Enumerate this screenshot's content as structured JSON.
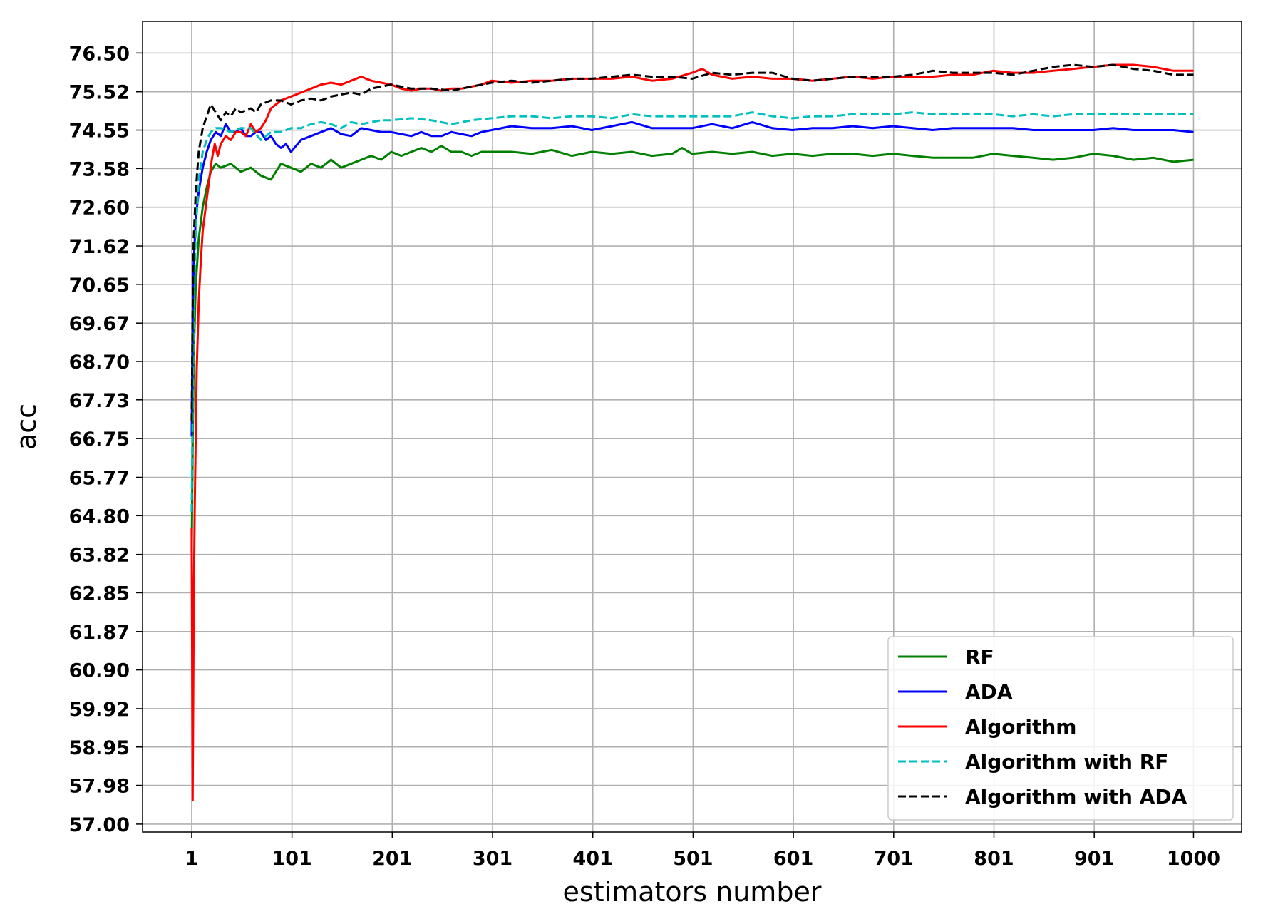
{
  "chart_data": {
    "type": "line",
    "xlabel": "estimators number",
    "ylabel": "acc",
    "xlim": [
      -48,
      1048
    ],
    "ylim": [
      56.8,
      77.3
    ],
    "xticks": [
      1,
      101,
      201,
      301,
      401,
      501,
      601,
      701,
      801,
      901,
      1000
    ],
    "yticks": [
      57.0,
      57.98,
      58.95,
      59.92,
      60.9,
      61.87,
      62.85,
      63.82,
      64.8,
      65.77,
      66.75,
      67.73,
      68.7,
      69.67,
      70.65,
      71.62,
      72.6,
      73.58,
      74.55,
      75.52,
      76.5
    ],
    "ytick_labels": [
      "57.00",
      "57.98",
      "58.95",
      "59.92",
      "60.90",
      "61.87",
      "62.85",
      "63.82",
      "64.80",
      "65.77",
      "66.75",
      "67.73",
      "68.70",
      "69.67",
      "70.65",
      "71.62",
      "72.60",
      "73.58",
      "74.55",
      "75.52",
      "76.50"
    ],
    "grid": true,
    "legend_position": "lower-right",
    "series": [
      {
        "name": "RF",
        "color": "#008000",
        "dash": "solid",
        "x": [
          1,
          2,
          3,
          5,
          8,
          12,
          16,
          20,
          25,
          30,
          40,
          50,
          60,
          70,
          80,
          90,
          100,
          110,
          120,
          130,
          140,
          150,
          160,
          170,
          180,
          190,
          200,
          210,
          220,
          230,
          240,
          250,
          260,
          270,
          280,
          290,
          300,
          320,
          340,
          360,
          380,
          400,
          420,
          440,
          460,
          480,
          490,
          500,
          520,
          540,
          560,
          580,
          600,
          620,
          640,
          660,
          680,
          700,
          720,
          740,
          760,
          780,
          800,
          820,
          840,
          860,
          880,
          900,
          920,
          940,
          960,
          980,
          1000
        ],
        "y": [
          63.9,
          66.5,
          68.8,
          70.6,
          71.8,
          72.6,
          73.1,
          73.5,
          73.7,
          73.6,
          73.7,
          73.5,
          73.6,
          73.4,
          73.3,
          73.7,
          73.6,
          73.5,
          73.7,
          73.6,
          73.8,
          73.6,
          73.7,
          73.8,
          73.9,
          73.8,
          74.0,
          73.9,
          74.0,
          74.1,
          74.0,
          74.15,
          74.0,
          74.0,
          73.9,
          74.0,
          74.0,
          74.0,
          73.95,
          74.05,
          73.9,
          74.0,
          73.95,
          74.0,
          73.9,
          73.95,
          74.1,
          73.95,
          74.0,
          73.95,
          74.0,
          73.9,
          73.95,
          73.9,
          73.95,
          73.95,
          73.9,
          73.95,
          73.9,
          73.85,
          73.85,
          73.85,
          73.95,
          73.9,
          73.85,
          73.8,
          73.85,
          73.95,
          73.9,
          73.8,
          73.85,
          73.75,
          73.8
        ]
      },
      {
        "name": "ADA",
        "color": "#0000ff",
        "dash": "solid",
        "x": [
          1,
          2,
          3,
          5,
          8,
          12,
          16,
          20,
          25,
          30,
          35,
          40,
          45,
          50,
          55,
          60,
          65,
          70,
          75,
          80,
          85,
          90,
          95,
          100,
          110,
          120,
          130,
          140,
          150,
          160,
          170,
          180,
          190,
          200,
          210,
          220,
          230,
          240,
          250,
          260,
          270,
          280,
          290,
          300,
          320,
          340,
          360,
          380,
          400,
          420,
          440,
          460,
          480,
          500,
          520,
          540,
          560,
          580,
          600,
          620,
          640,
          660,
          680,
          700,
          720,
          740,
          760,
          780,
          800,
          820,
          840,
          860,
          880,
          900,
          920,
          940,
          960,
          980,
          1000
        ],
        "y": [
          66.8,
          69.8,
          71.2,
          72.3,
          73.0,
          73.6,
          74.0,
          74.3,
          74.5,
          74.4,
          74.7,
          74.5,
          74.5,
          74.6,
          74.4,
          74.4,
          74.5,
          74.5,
          74.3,
          74.4,
          74.2,
          74.1,
          74.2,
          74.0,
          74.3,
          74.4,
          74.5,
          74.6,
          74.45,
          74.4,
          74.6,
          74.55,
          74.5,
          74.5,
          74.45,
          74.4,
          74.5,
          74.4,
          74.4,
          74.5,
          74.45,
          74.4,
          74.5,
          74.55,
          74.65,
          74.6,
          74.6,
          74.65,
          74.55,
          74.65,
          74.75,
          74.6,
          74.6,
          74.6,
          74.7,
          74.6,
          74.75,
          74.6,
          74.55,
          74.6,
          74.6,
          74.65,
          74.6,
          74.65,
          74.6,
          74.55,
          74.6,
          74.6,
          74.6,
          74.6,
          74.55,
          74.55,
          74.55,
          74.55,
          74.6,
          74.55,
          74.55,
          74.55,
          74.5
        ]
      },
      {
        "name": "Algorithm",
        "color": "#ff0000",
        "dash": "solid",
        "x": [
          1,
          2,
          3,
          4,
          6,
          8,
          10,
          12,
          15,
          18,
          21,
          24,
          27,
          30,
          35,
          40,
          45,
          50,
          55,
          60,
          65,
          70,
          75,
          80,
          90,
          100,
          110,
          120,
          130,
          140,
          150,
          160,
          170,
          180,
          190,
          200,
          210,
          220,
          230,
          240,
          250,
          260,
          270,
          280,
          290,
          300,
          320,
          340,
          360,
          380,
          400,
          420,
          440,
          460,
          480,
          500,
          510,
          520,
          540,
          560,
          580,
          600,
          620,
          640,
          660,
          680,
          700,
          720,
          740,
          760,
          780,
          800,
          820,
          840,
          860,
          880,
          900,
          920,
          940,
          960,
          980,
          1000
        ],
        "y": [
          64.5,
          57.6,
          62.5,
          65.0,
          68.5,
          70.2,
          71.2,
          72.0,
          72.6,
          73.2,
          73.8,
          74.2,
          73.9,
          74.2,
          74.4,
          74.3,
          74.5,
          74.5,
          74.4,
          74.7,
          74.5,
          74.6,
          74.8,
          75.1,
          75.3,
          75.4,
          75.5,
          75.6,
          75.7,
          75.75,
          75.7,
          75.8,
          75.9,
          75.8,
          75.75,
          75.7,
          75.6,
          75.55,
          75.6,
          75.6,
          75.55,
          75.6,
          75.6,
          75.65,
          75.7,
          75.8,
          75.75,
          75.8,
          75.8,
          75.85,
          75.85,
          75.85,
          75.9,
          75.8,
          75.85,
          76.0,
          76.1,
          75.95,
          75.85,
          75.9,
          75.85,
          75.85,
          75.8,
          75.85,
          75.9,
          75.85,
          75.9,
          75.9,
          75.9,
          75.95,
          75.95,
          76.05,
          76.0,
          76.0,
          76.05,
          76.1,
          76.15,
          76.2,
          76.2,
          76.15,
          76.05,
          76.05
        ]
      },
      {
        "name": "Algorithm with RF",
        "color": "#00bfbf",
        "dash": "dashed",
        "x": [
          1,
          2,
          3,
          5,
          8,
          12,
          16,
          20,
          25,
          30,
          40,
          50,
          60,
          70,
          80,
          90,
          100,
          110,
          120,
          130,
          140,
          150,
          160,
          170,
          180,
          190,
          200,
          220,
          240,
          260,
          280,
          300,
          320,
          340,
          360,
          380,
          400,
          420,
          440,
          460,
          480,
          500,
          520,
          540,
          560,
          580,
          600,
          620,
          640,
          660,
          680,
          700,
          720,
          740,
          760,
          780,
          800,
          820,
          840,
          860,
          880,
          900,
          920,
          940,
          960,
          980,
          1000
        ],
        "y": [
          64.9,
          67.5,
          70.0,
          72.0,
          73.3,
          74.0,
          74.3,
          74.5,
          74.6,
          74.6,
          74.5,
          74.6,
          74.6,
          74.3,
          74.5,
          74.5,
          74.6,
          74.6,
          74.7,
          74.75,
          74.7,
          74.6,
          74.75,
          74.7,
          74.75,
          74.8,
          74.8,
          74.85,
          74.8,
          74.7,
          74.8,
          74.85,
          74.9,
          74.9,
          74.85,
          74.9,
          74.9,
          74.85,
          74.95,
          74.9,
          74.9,
          74.9,
          74.9,
          74.9,
          75.0,
          74.9,
          74.85,
          74.9,
          74.9,
          74.95,
          74.95,
          74.95,
          75.0,
          74.95,
          74.95,
          74.95,
          74.95,
          74.9,
          74.95,
          74.9,
          74.95,
          74.95,
          74.95,
          74.95,
          74.95,
          74.95,
          74.95
        ]
      },
      {
        "name": "Algorithm with ADA",
        "color": "#000000",
        "dash": "dashed",
        "x": [
          1,
          2,
          3,
          5,
          8,
          12,
          16,
          20,
          25,
          30,
          35,
          40,
          45,
          50,
          55,
          60,
          65,
          70,
          80,
          90,
          100,
          110,
          120,
          130,
          140,
          150,
          160,
          170,
          180,
          190,
          200,
          220,
          240,
          260,
          280,
          300,
          320,
          340,
          360,
          380,
          400,
          420,
          440,
          460,
          480,
          500,
          520,
          540,
          560,
          580,
          600,
          620,
          640,
          660,
          680,
          700,
          720,
          740,
          760,
          780,
          800,
          820,
          840,
          860,
          880,
          900,
          920,
          940,
          960,
          980,
          1000
        ],
        "y": [
          67.2,
          70.0,
          71.8,
          73.0,
          74.0,
          74.6,
          74.9,
          75.2,
          75.0,
          74.8,
          75.0,
          74.9,
          75.1,
          75.0,
          75.05,
          75.1,
          75.0,
          75.2,
          75.3,
          75.3,
          75.2,
          75.3,
          75.35,
          75.3,
          75.4,
          75.45,
          75.5,
          75.45,
          75.6,
          75.65,
          75.7,
          75.6,
          75.6,
          75.55,
          75.65,
          75.75,
          75.8,
          75.75,
          75.8,
          75.85,
          75.85,
          75.9,
          75.95,
          75.9,
          75.9,
          75.85,
          76.0,
          75.95,
          76.0,
          76.0,
          75.85,
          75.8,
          75.85,
          75.9,
          75.9,
          75.9,
          75.95,
          76.05,
          76.0,
          76.0,
          76.0,
          75.95,
          76.05,
          76.15,
          76.2,
          76.15,
          76.2,
          76.1,
          76.05,
          75.95,
          75.95
        ]
      }
    ]
  }
}
